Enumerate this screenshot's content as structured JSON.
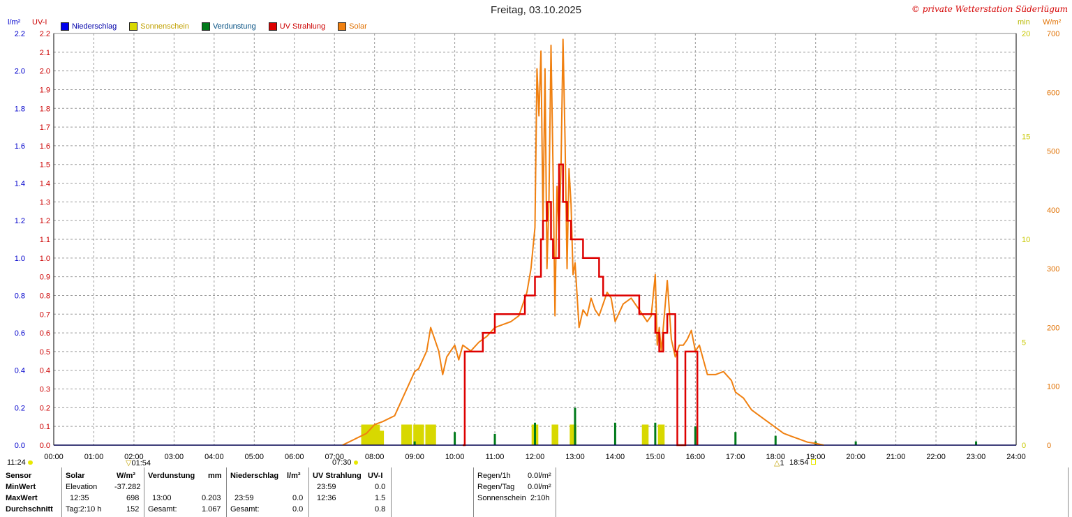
{
  "title": "Freitag, 03.10.2025",
  "copyright": "© private Wetterstation Süderlügum",
  "units": {
    "left_outer": "l/m²",
    "left_inner": "UV-I",
    "right_inner": "min",
    "right_outer": "W/m²"
  },
  "legend": [
    {
      "label": "Niederschlag",
      "color": "#0000ee"
    },
    {
      "label": "Sonnenschein",
      "color": "#d8d800"
    },
    {
      "label": "Verdunstung",
      "color": "#007a1a"
    },
    {
      "label": "UV Strahlung",
      "color": "#dd0000"
    },
    {
      "label": "Solar",
      "color": "#f08010"
    }
  ],
  "markers": {
    "sunrise_label": "11:24",
    "a_label": "01:54",
    "b_label": "07:30",
    "c_label": "1",
    "d_label": "18:54"
  },
  "chart_data": {
    "type": "line",
    "x_ticks": [
      "00:00",
      "01:00",
      "02:00",
      "03:00",
      "04:00",
      "05:00",
      "06:00",
      "07:00",
      "08:00",
      "09:00",
      "10:00",
      "11:00",
      "12:00",
      "13:00",
      "14:00",
      "15:00",
      "16:00",
      "17:00",
      "18:00",
      "19:00",
      "20:00",
      "21:00",
      "22:00",
      "23:00",
      "24:00"
    ],
    "xlim": [
      0,
      24
    ],
    "axes": {
      "left_outer": {
        "label": "l/m²",
        "ylim": [
          0,
          2.2
        ],
        "ticks": [
          "0.0",
          "0.2",
          "0.4",
          "0.6",
          "0.8",
          "1.0",
          "1.2",
          "1.4",
          "1.6",
          "1.8",
          "2.0",
          "2.2"
        ],
        "color": "#0000cc"
      },
      "left_inner": {
        "label": "UV-I",
        "ylim": [
          0,
          2.2
        ],
        "ticks": [
          "0.0",
          "0.1",
          "0.2",
          "0.3",
          "0.4",
          "0.5",
          "0.6",
          "0.7",
          "0.8",
          "0.9",
          "1.0",
          "1.1",
          "1.2",
          "1.3",
          "1.4",
          "1.5",
          "1.6",
          "1.7",
          "1.8",
          "1.9",
          "2.0",
          "2.1",
          "2.2"
        ],
        "color": "#cc0000"
      },
      "right_inner": {
        "label": "min",
        "ylim": [
          0,
          20
        ],
        "ticks": [
          "0",
          "5",
          "10",
          "15",
          "20"
        ],
        "color": "#c8c800"
      },
      "right_outer": {
        "label": "W/m²",
        "ylim": [
          0,
          700
        ],
        "ticks": [
          "0",
          "100",
          "200",
          "300",
          "400",
          "500",
          "600",
          "700"
        ],
        "color": "#e07000"
      }
    },
    "grid": true,
    "series": [
      {
        "name": "Solar",
        "axis": "right_outer",
        "color": "#f08010",
        "x": [
          7.2,
          7.5,
          7.8,
          8.0,
          8.2,
          8.5,
          8.7,
          8.9,
          9.0,
          9.1,
          9.3,
          9.4,
          9.5,
          9.6,
          9.7,
          9.8,
          9.9,
          10.0,
          10.1,
          10.2,
          10.4,
          10.6,
          10.8,
          11.0,
          11.2,
          11.4,
          11.6,
          11.8,
          11.9,
          12.0,
          12.05,
          12.1,
          12.15,
          12.2,
          12.25,
          12.3,
          12.35,
          12.4,
          12.45,
          12.5,
          12.55,
          12.6,
          12.65,
          12.7,
          12.75,
          12.8,
          12.85,
          12.9,
          12.95,
          13.0,
          13.1,
          13.2,
          13.3,
          13.4,
          13.5,
          13.6,
          13.7,
          13.8,
          13.9,
          14.0,
          14.2,
          14.4,
          14.6,
          14.8,
          14.9,
          15.0,
          15.05,
          15.1,
          15.15,
          15.2,
          15.3,
          15.4,
          15.5,
          15.6,
          15.7,
          15.8,
          15.9,
          16.0,
          16.1,
          16.3,
          16.5,
          16.7,
          16.9,
          17.0,
          17.2,
          17.4,
          17.6,
          17.8,
          18.0,
          18.2,
          18.4,
          18.6,
          18.8,
          19.0,
          19.2
        ],
        "y": [
          0,
          10,
          20,
          35,
          40,
          50,
          80,
          110,
          125,
          130,
          160,
          200,
          180,
          160,
          120,
          150,
          160,
          170,
          145,
          170,
          160,
          175,
          185,
          200,
          205,
          210,
          220,
          260,
          300,
          370,
          640,
          560,
          670,
          380,
          640,
          300,
          420,
          680,
          470,
          220,
          440,
          360,
          470,
          690,
          520,
          300,
          470,
          410,
          290,
          310,
          200,
          230,
          220,
          250,
          230,
          220,
          240,
          260,
          250,
          210,
          240,
          250,
          230,
          210,
          220,
          290,
          170,
          200,
          160,
          200,
          280,
          180,
          150,
          170,
          170,
          180,
          195,
          160,
          170,
          120,
          120,
          125,
          110,
          90,
          80,
          60,
          50,
          40,
          30,
          20,
          15,
          10,
          5,
          3,
          0
        ]
      },
      {
        "name": "UV Strahlung",
        "axis": "left_inner",
        "color": "#dd0000",
        "x": [
          10.2,
          10.25,
          10.45,
          10.7,
          10.75,
          11.0,
          11.25,
          11.75,
          12.0,
          12.1,
          12.15,
          12.2,
          12.3,
          12.4,
          12.45,
          12.5,
          12.6,
          12.7,
          12.8,
          12.9,
          13.0,
          13.2,
          13.4,
          13.6,
          13.7,
          14.0,
          14.4,
          14.6,
          14.8,
          15.0,
          15.1,
          15.2,
          15.3,
          15.5,
          15.55,
          15.75,
          15.8,
          16.0,
          16.05
        ],
        "y": [
          0,
          0.5,
          0.5,
          0.6,
          0.6,
          0.7,
          0.7,
          0.8,
          0.9,
          0.9,
          1.1,
          1.2,
          1.3,
          1.1,
          1.0,
          1.0,
          1.5,
          1.3,
          1.2,
          1.1,
          1.1,
          1.0,
          1.0,
          0.9,
          0.8,
          0.8,
          0.8,
          0.7,
          0.7,
          0.6,
          0.5,
          0.6,
          0.7,
          0.5,
          0,
          0.5,
          0.5,
          0.5,
          0
        ]
      },
      {
        "name": "Sonnenschein",
        "axis": "right_inner",
        "color": "#d8d800",
        "x": [
          7.75,
          7.85,
          7.95,
          8.05,
          8.15,
          8.75,
          8.85,
          9.05,
          9.15,
          9.35,
          9.45,
          10.0,
          12.0,
          12.5,
          12.95,
          14.75,
          15.15
        ],
        "y": [
          1,
          1,
          1,
          1,
          0.7,
          1,
          1,
          1,
          1,
          1,
          1,
          0,
          1,
          1,
          1,
          1,
          1
        ]
      },
      {
        "name": "Verdunstung",
        "axis": "left_outer",
        "color": "#007a1a",
        "x": [
          9.0,
          10.0,
          11.0,
          12.0,
          13.0,
          14.0,
          15.0,
          16.0,
          17.0,
          18.0,
          19.0,
          20.0,
          23.0
        ],
        "y": [
          0.02,
          0.07,
          0.06,
          0.12,
          0.2,
          0.12,
          0.12,
          0.1,
          0.07,
          0.05,
          0.02,
          0.02,
          0.02
        ]
      },
      {
        "name": "Niederschlag",
        "axis": "left_outer",
        "color": "#0000ee",
        "x": [
          0,
          24
        ],
        "y": [
          0.0,
          0.0
        ]
      }
    ]
  },
  "table": {
    "row_labels": [
      "Sensor",
      "MinWert",
      "MaxWert",
      "Durchschnitt"
    ],
    "solar": {
      "header": "Solar",
      "unit": "W/m²",
      "min_label": "Elevation",
      "min_value": "-37.282",
      "max_time": "12:35",
      "max_value": "698",
      "avg_label": "Tag:2:10 h",
      "avg_value": "152"
    },
    "verdunstung": {
      "header": "Verdunstung",
      "unit": "mm",
      "max_time": "13:00",
      "max_value": "0.203",
      "sum_label": "Gesamt:",
      "sum_value": "1.067"
    },
    "niederschlag": {
      "header": "Niederschlag",
      "unit": "l/m²",
      "max_time": "23:59",
      "max_value": "0.0",
      "sum_label": "Gesamt:",
      "sum_value": "0.0"
    },
    "uv": {
      "header": "UV Strahlung",
      "unit": "UV-I",
      "min_time": "23:59",
      "min_value": "0.0",
      "max_time": "12:36",
      "max_value": "1.5",
      "avg_value": "0.8"
    },
    "summary": [
      {
        "label": "Regen/1h",
        "value": "0.0l/m²"
      },
      {
        "label": "Regen/Tag",
        "value": "0.0l/m²"
      },
      {
        "label": "Sonnenschein",
        "value": "2:10h"
      }
    ]
  }
}
